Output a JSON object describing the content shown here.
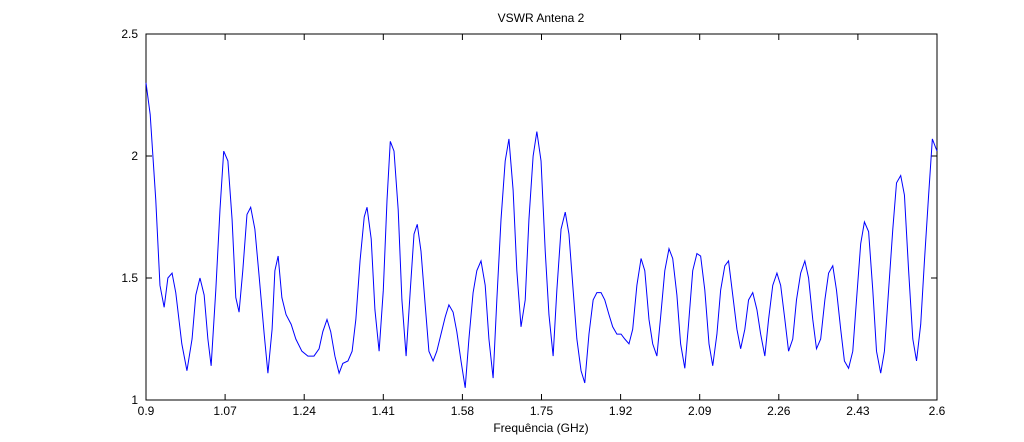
{
  "chart_data": {
    "type": "line",
    "title": "VSWR Antena 2",
    "x_label": "Frequência (GHz)",
    "xlim": [
      0.9,
      2.6
    ],
    "ylim": [
      1,
      2.5
    ],
    "xticks": [
      0.9,
      1.07,
      1.24,
      1.41,
      1.58,
      1.75,
      1.92,
      2.09,
      2.26,
      2.43,
      2.6
    ],
    "yticks": [
      1,
      1.5,
      2,
      2.5
    ],
    "x": [
      0.9,
      0.909,
      0.921,
      0.93,
      0.939,
      0.947,
      0.956,
      0.964,
      0.977,
      0.988,
      0.999,
      1.007,
      1.016,
      1.025,
      1.033,
      1.04,
      1.05,
      1.059,
      1.067,
      1.076,
      1.085,
      1.093,
      1.1,
      1.108,
      1.117,
      1.125,
      1.134,
      1.143,
      1.154,
      1.162,
      1.171,
      1.177,
      1.184,
      1.192,
      1.201,
      1.212,
      1.222,
      1.235,
      1.248,
      1.261,
      1.272,
      1.28,
      1.289,
      1.297,
      1.306,
      1.315,
      1.323,
      1.334,
      1.343,
      1.351,
      1.36,
      1.369,
      1.375,
      1.384,
      1.392,
      1.401,
      1.41,
      1.418,
      1.425,
      1.433,
      1.442,
      1.45,
      1.459,
      1.468,
      1.476,
      1.483,
      1.491,
      1.5,
      1.508,
      1.517,
      1.525,
      1.534,
      1.543,
      1.551,
      1.56,
      1.568,
      1.577,
      1.586,
      1.594,
      1.603,
      1.611,
      1.62,
      1.629,
      1.637,
      1.646,
      1.654,
      1.663,
      1.672,
      1.68,
      1.689,
      1.697,
      1.706,
      1.715,
      1.723,
      1.732,
      1.74,
      1.749,
      1.758,
      1.766,
      1.775,
      1.783,
      1.792,
      1.801,
      1.809,
      1.818,
      1.826,
      1.835,
      1.843,
      1.852,
      1.861,
      1.869,
      1.878,
      1.886,
      1.895,
      1.903,
      1.912,
      1.921,
      1.929,
      1.938,
      1.946,
      1.955,
      1.964,
      1.972,
      1.981,
      1.989,
      1.998,
      2.006,
      2.015,
      2.024,
      2.032,
      2.041,
      2.049,
      2.058,
      2.066,
      2.075,
      2.084,
      2.092,
      2.101,
      2.11,
      2.118,
      2.127,
      2.135,
      2.144,
      2.152,
      2.161,
      2.17,
      2.178,
      2.187,
      2.195,
      2.204,
      2.213,
      2.221,
      2.23,
      2.238,
      2.247,
      2.256,
      2.264,
      2.273,
      2.281,
      2.29,
      2.298,
      2.307,
      2.316,
      2.324,
      2.333,
      2.341,
      2.35,
      2.359,
      2.367,
      2.376,
      2.384,
      2.393,
      2.401,
      2.41,
      2.419,
      2.427,
      2.436,
      2.444,
      2.453,
      2.462,
      2.47,
      2.479,
      2.487,
      2.496,
      2.505,
      2.513,
      2.522,
      2.53,
      2.539,
      2.548,
      2.556,
      2.565,
      2.573,
      2.582,
      2.59,
      2.6
    ],
    "series": [
      {
        "color": "#0000ff",
        "values": [
          2.3,
          2.17,
          1.82,
          1.47,
          1.38,
          1.5,
          1.52,
          1.44,
          1.23,
          1.12,
          1.25,
          1.43,
          1.5,
          1.43,
          1.25,
          1.14,
          1.45,
          1.78,
          2.02,
          1.98,
          1.74,
          1.42,
          1.36,
          1.53,
          1.76,
          1.79,
          1.7,
          1.51,
          1.27,
          1.11,
          1.29,
          1.53,
          1.59,
          1.42,
          1.35,
          1.31,
          1.25,
          1.2,
          1.18,
          1.18,
          1.21,
          1.28,
          1.33,
          1.28,
          1.18,
          1.11,
          1.15,
          1.16,
          1.2,
          1.33,
          1.57,
          1.75,
          1.79,
          1.66,
          1.37,
          1.2,
          1.45,
          1.82,
          2.06,
          2.02,
          1.78,
          1.41,
          1.18,
          1.45,
          1.68,
          1.72,
          1.61,
          1.39,
          1.2,
          1.16,
          1.2,
          1.27,
          1.34,
          1.39,
          1.36,
          1.28,
          1.16,
          1.05,
          1.25,
          1.44,
          1.53,
          1.57,
          1.47,
          1.25,
          1.09,
          1.41,
          1.74,
          1.98,
          2.07,
          1.86,
          1.53,
          1.3,
          1.41,
          1.74,
          2.0,
          2.1,
          1.98,
          1.61,
          1.35,
          1.18,
          1.45,
          1.7,
          1.77,
          1.68,
          1.45,
          1.25,
          1.12,
          1.07,
          1.27,
          1.41,
          1.44,
          1.44,
          1.41,
          1.35,
          1.3,
          1.27,
          1.27,
          1.25,
          1.23,
          1.29,
          1.47,
          1.58,
          1.53,
          1.33,
          1.23,
          1.18,
          1.34,
          1.53,
          1.62,
          1.58,
          1.43,
          1.23,
          1.13,
          1.31,
          1.53,
          1.6,
          1.59,
          1.45,
          1.23,
          1.14,
          1.27,
          1.45,
          1.55,
          1.57,
          1.43,
          1.29,
          1.21,
          1.29,
          1.41,
          1.44,
          1.37,
          1.27,
          1.18,
          1.33,
          1.47,
          1.52,
          1.47,
          1.33,
          1.2,
          1.25,
          1.41,
          1.52,
          1.57,
          1.5,
          1.33,
          1.21,
          1.25,
          1.41,
          1.52,
          1.55,
          1.45,
          1.29,
          1.16,
          1.13,
          1.2,
          1.41,
          1.64,
          1.73,
          1.69,
          1.45,
          1.2,
          1.11,
          1.2,
          1.45,
          1.7,
          1.89,
          1.92,
          1.84,
          1.53,
          1.25,
          1.16,
          1.31,
          1.57,
          1.84,
          2.07,
          2.02
        ]
      }
    ]
  }
}
